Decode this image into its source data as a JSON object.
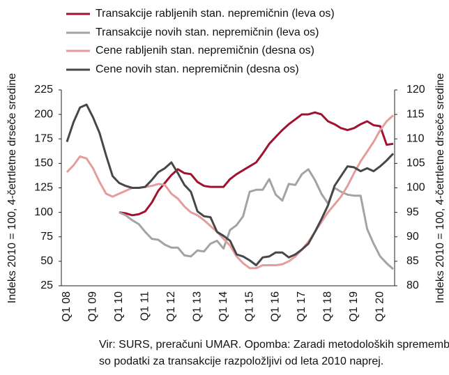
{
  "chart_data": {
    "type": "line",
    "categories": [
      "Q1 08",
      null,
      null,
      null,
      "Q1 09",
      null,
      null,
      null,
      "Q1 10",
      null,
      null,
      null,
      "Q1 11",
      null,
      null,
      null,
      "Q1 12",
      null,
      null,
      null,
      "Q1 13",
      null,
      null,
      null,
      "Q1 14",
      null,
      null,
      null,
      "Q1 15",
      null,
      null,
      null,
      "Q1 16",
      null,
      null,
      null,
      "Q1 17",
      null,
      null,
      null,
      "Q1 18",
      null,
      null,
      null,
      "Q1 19",
      null,
      null,
      null,
      "Q1 20",
      null,
      null
    ],
    "y_label": "Indeks 2010 = 100, 4-četrtletne drseče sredine",
    "y2_label": "Indeks 2010 = 100, 4-četrtletne drseče sredine",
    "ylim": [
      25,
      225
    ],
    "yticks": [
      25,
      50,
      75,
      100,
      125,
      150,
      175,
      200,
      225
    ],
    "y2lim": [
      80,
      120
    ],
    "y2ticks": [
      80,
      85,
      90,
      95,
      100,
      105,
      110,
      115,
      120
    ],
    "series": [
      {
        "name": "Transakcije rabljenih stan. nepremičnin (leva os)",
        "color": "#a0122e",
        "values": [
          null,
          null,
          null,
          null,
          null,
          null,
          null,
          null,
          100,
          99,
          97,
          98,
          101,
          110,
          122,
          130,
          138,
          144,
          140,
          139,
          131,
          127,
          126,
          126,
          126,
          134,
          139,
          143,
          147,
          151,
          160,
          170,
          177,
          184,
          190,
          195,
          200,
          200,
          202,
          200,
          193,
          190,
          186,
          184,
          186,
          190,
          193,
          189,
          188,
          169,
          170
        ]
      },
      {
        "name": "Transakcije novih stan. nepremičnin (leva os)",
        "color": "#a3a3a3",
        "values": [
          null,
          null,
          null,
          null,
          null,
          null,
          null,
          null,
          100,
          97,
          92,
          88,
          80,
          73,
          72,
          67,
          64,
          64,
          56,
          55,
          61,
          60,
          68,
          71,
          63,
          82,
          87,
          96,
          121,
          123,
          123,
          134,
          118,
          112,
          129,
          128,
          139,
          144,
          133,
          119,
          109,
          125,
          121,
          118,
          117,
          117,
          83,
          68,
          55,
          48,
          42
        ]
      },
      {
        "name": "Cene rabljenih stan. nepremičnin (desna os)",
        "color": "#e59c9c",
        "axis": "y2",
        "values": [
          103.2,
          104.6,
          106.4,
          106,
          104,
          101.2,
          98.8,
          98.2,
          98.8,
          99.4,
          100,
          100,
          100.2,
          100.4,
          100.8,
          100.6,
          98.8,
          97.8,
          96.2,
          95,
          94.4,
          93.4,
          92.2,
          91,
          89.6,
          88.2,
          86,
          84.6,
          83.6,
          83.6,
          84.2,
          84.2,
          84.2,
          84.4,
          85,
          86,
          87.4,
          89,
          91,
          93,
          95,
          96.6,
          98.2,
          100.4,
          103,
          105.4,
          107.4,
          109.4,
          111.8,
          113.6,
          114.8
        ]
      },
      {
        "name": "Cene novih stan. nepremičnin (desna os)",
        "color": "#474747",
        "axis": "y2",
        "values": [
          109.4,
          113.4,
          116.4,
          117,
          114.4,
          111.2,
          106.6,
          102.4,
          101,
          100.4,
          100,
          100,
          100.2,
          101.6,
          103.2,
          104,
          105.2,
          103,
          100.6,
          99.2,
          95.2,
          94.2,
          94,
          91,
          90.2,
          89.2,
          86.4,
          86,
          85.2,
          84.2,
          85.8,
          86,
          86.8,
          86.8,
          85.8,
          86.4,
          87.4,
          88.6,
          91,
          93.6,
          96.4,
          100.4,
          102.4,
          104.4,
          104.2,
          103.4,
          104,
          103.4,
          104.4,
          105.6,
          107
        ]
      }
    ],
    "note": [
      "Vir: SURS, preračuni UMAR. Opomba: Zaradi metodoloških sprememb",
      "so podatki za transakcije razpoložljivi od leta 2010 naprej."
    ]
  }
}
